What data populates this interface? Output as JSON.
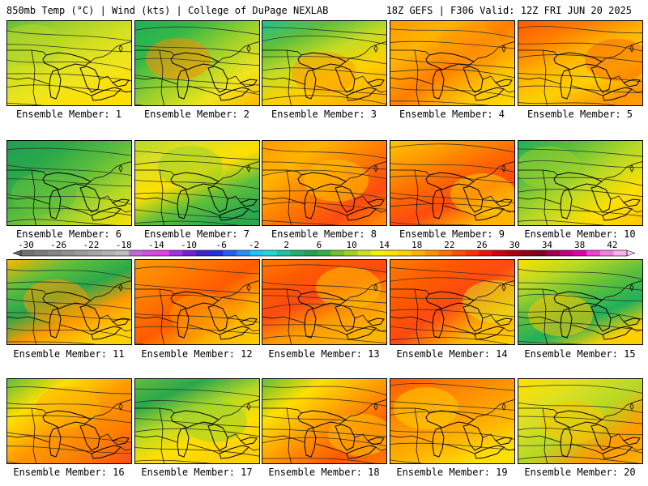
{
  "header": {
    "left": "850mb Temp (°C) | Wind (kts) | College of DuPage NEXLAB",
    "right": "18Z GEFS | F306 Valid: 12Z FRI JUN 20 2025"
  },
  "members": [
    {
      "label": "Ensemble Member: 1",
      "colors": [
        "#5fbf3a",
        "#a6d12c",
        "#d4e01e",
        "#f0e51c",
        "#ffdf00",
        "#b7d926"
      ]
    },
    {
      "label": "Ensemble Member: 2",
      "colors": [
        "#20b05a",
        "#35b845",
        "#9bd12b",
        "#f0e51c",
        "#ffb400",
        "#ff8c00"
      ]
    },
    {
      "label": "Ensemble Member: 3",
      "colors": [
        "#20c090",
        "#5fbf3a",
        "#c7dc22",
        "#ffd000",
        "#ffb400",
        "#ff9a00"
      ]
    },
    {
      "label": "Ensemble Member: 4",
      "colors": [
        "#ff9a00",
        "#ffb400",
        "#ff7d00",
        "#ffc400",
        "#ffdf00",
        "#ff9a00"
      ]
    },
    {
      "label": "Ensemble Member: 5",
      "colors": [
        "#ff5a00",
        "#ff7d00",
        "#ffb400",
        "#ffd000",
        "#ff9a00",
        "#ff6a00"
      ]
    },
    {
      "label": "Ensemble Member: 6",
      "colors": [
        "#1fa054",
        "#2aa84a",
        "#5fbf3a",
        "#b7d926",
        "#ffdf00",
        "#5fbf3a"
      ]
    },
    {
      "label": "Ensemble Member: 7",
      "colors": [
        "#b7d926",
        "#e0e020",
        "#ffdf00",
        "#5fbf3a",
        "#2aa84a",
        "#9bd12b"
      ]
    },
    {
      "label": "Ensemble Member: 8",
      "colors": [
        "#ff9a00",
        "#ffb400",
        "#ff7d00",
        "#ff4a10",
        "#ff9a00",
        "#ffc400"
      ]
    },
    {
      "label": "Ensemble Member: 9",
      "colors": [
        "#ffc400",
        "#ff9a00",
        "#ff6a00",
        "#ff4a10",
        "#ffb400",
        "#ffd000"
      ]
    },
    {
      "label": "Ensemble Member: 10",
      "colors": [
        "#20b05a",
        "#5fbf3a",
        "#b7d926",
        "#ffdf00",
        "#ffc400",
        "#9bd12b"
      ]
    },
    {
      "label": "Ensemble Member: 11",
      "colors": [
        "#ffb400",
        "#5fbf3a",
        "#2aa84a",
        "#ff9a00",
        "#ffd000",
        "#ff9a00"
      ]
    },
    {
      "label": "Ensemble Member: 12",
      "colors": [
        "#ff9a00",
        "#ff7d00",
        "#ff5a00",
        "#ffb400",
        "#ffd000",
        "#ff9a00"
      ]
    },
    {
      "label": "Ensemble Member: 13",
      "colors": [
        "#ff7d00",
        "#ff5a00",
        "#ff4a10",
        "#ff9a00",
        "#ffb400",
        "#ffc400"
      ]
    },
    {
      "label": "Ensemble Member: 14",
      "colors": [
        "#ff7d00",
        "#ff5a00",
        "#ff4a10",
        "#ffb400",
        "#ffd000",
        "#e0e020"
      ]
    },
    {
      "label": "Ensemble Member: 15",
      "colors": [
        "#ffdf00",
        "#b7d926",
        "#5fbf3a",
        "#20b05a",
        "#ffd000",
        "#ffc400"
      ]
    },
    {
      "label": "Ensemble Member: 16",
      "colors": [
        "#5fbf3a",
        "#ffdf00",
        "#ff9a00",
        "#ff7d00",
        "#ff4a10",
        "#ffb400"
      ]
    },
    {
      "label": "Ensemble Member: 17",
      "colors": [
        "#5fbf3a",
        "#2aa84a",
        "#b7d926",
        "#ffdf00",
        "#ffd000",
        "#9bd12b"
      ]
    },
    {
      "label": "Ensemble Member: 18",
      "colors": [
        "#5fbf3a",
        "#ffdf00",
        "#ff9a00",
        "#ff5a00",
        "#ff7d00",
        "#ffc400"
      ]
    },
    {
      "label": "Ensemble Member: 19",
      "colors": [
        "#ff5a00",
        "#ff7d00",
        "#ff9a00",
        "#ffb400",
        "#ffdf00",
        "#ffd000"
      ]
    },
    {
      "label": "Ensemble Member: 20",
      "colors": [
        "#ffdf00",
        "#e0e020",
        "#b7d926",
        "#ff9a00",
        "#ffb400",
        "#ffc400"
      ]
    }
  ],
  "colorbar": {
    "ticks": [
      "-30",
      "-26",
      "-22",
      "-18",
      "-14",
      "-10",
      "-6",
      "-2",
      "2",
      "6",
      "10",
      "14",
      "18",
      "22",
      "26",
      "30",
      "34",
      "38",
      "42"
    ],
    "colors": [
      "#707070",
      "#7a7a7a",
      "#858585",
      "#909090",
      "#9b9b9b",
      "#a6a6a6",
      "#b2b2b2",
      "#bdbdbd",
      "#c06ad8",
      "#d04ee0",
      "#e040e8",
      "#a030e0",
      "#7020d0",
      "#4020c8",
      "#2030e0",
      "#2060f0",
      "#2090f8",
      "#20c0f8",
      "#20d8d0",
      "#20c0a0",
      "#20b070",
      "#20a050",
      "#30b040",
      "#70c030",
      "#a0d020",
      "#d0e020",
      "#f0f000",
      "#ffe000",
      "#ffd000",
      "#ffb000",
      "#ff9000",
      "#ff7000",
      "#ff5000",
      "#ff3000",
      "#f01010",
      "#d00010",
      "#b00010",
      "#900010",
      "#800020",
      "#a00050",
      "#c00080",
      "#e000b0",
      "#f040d0",
      "#f080e0",
      "#f8b0f0"
    ]
  }
}
